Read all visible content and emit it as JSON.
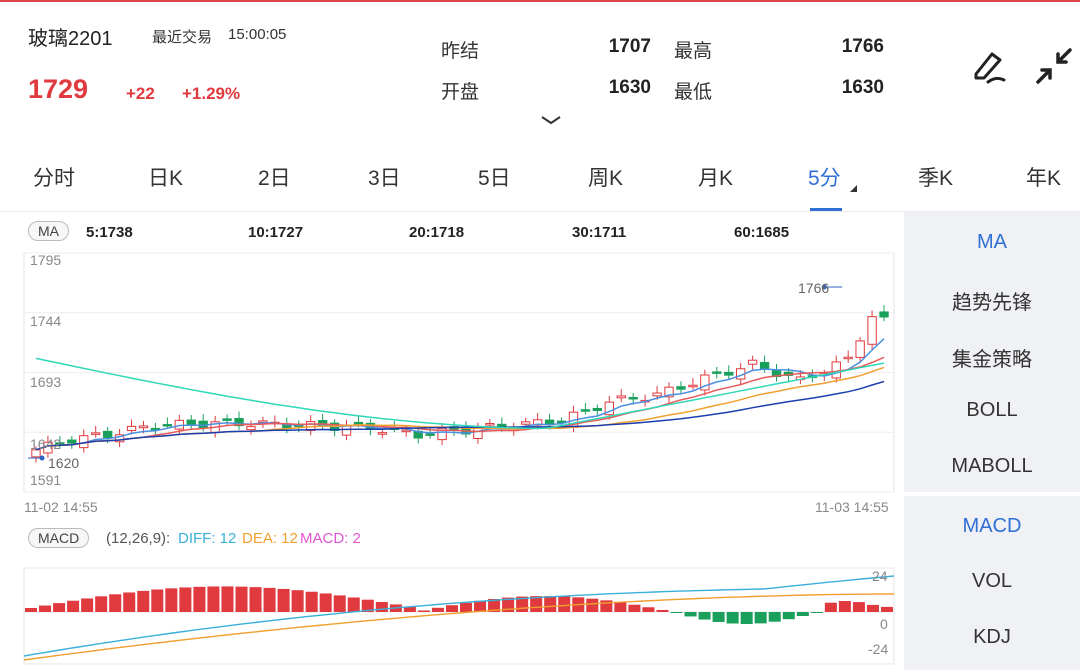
{
  "header": {
    "name": "玻璃2201",
    "last_trade_label": "最近交易",
    "last_trade_time": "15:00:05",
    "price": "1729",
    "change": "+22",
    "change_pct": "+1.29%",
    "stats": [
      {
        "label": "昨结",
        "value": "1707"
      },
      {
        "label": "最高",
        "value": "1766"
      },
      {
        "label": "开盘",
        "value": "1630"
      },
      {
        "label": "最低",
        "value": "1630"
      }
    ],
    "icons": [
      "pen-icon",
      "collapse-icon",
      "chevron-down-icon"
    ]
  },
  "tabs": [
    {
      "label": "分时"
    },
    {
      "label": "日K"
    },
    {
      "label": "2日"
    },
    {
      "label": "3日"
    },
    {
      "label": "5日"
    },
    {
      "label": "周K"
    },
    {
      "label": "月K"
    },
    {
      "label": "5分",
      "active": true
    },
    {
      "label": "季K"
    },
    {
      "label": "年K"
    }
  ],
  "ma_bar": {
    "pill": "MA",
    "values": [
      {
        "text": "5:1738",
        "color": "#4a8fe0"
      },
      {
        "text": "10:1727",
        "color": "#e85a5a"
      },
      {
        "text": "20:1718",
        "color": "#f0a030"
      },
      {
        "text": "30:1711",
        "color": "#1c3fb0"
      },
      {
        "text": "60:1685",
        "color": "#2ed8b8"
      }
    ]
  },
  "price_axis": {
    "labels": [
      "1795",
      "1744",
      "1693",
      "1642",
      "1591"
    ]
  },
  "time_axis": {
    "start": "11-02 14:55",
    "end": "11-03 14:55"
  },
  "markers": {
    "high": "1766",
    "low": "1620"
  },
  "macd_bar": {
    "pill": "MACD",
    "params": "(12,26,9):",
    "diff": "DIFF: 12",
    "dea": "DEA: 12",
    "macd": "MACD: 2",
    "diff_color": "#3ab0d8",
    "dea_color": "#f0a030",
    "macd_color": "#e055d0"
  },
  "macd_axis": {
    "labels": [
      "24",
      "0",
      "-24"
    ]
  },
  "side_panel_top": [
    "MA",
    "趋势先锋",
    "集金策略",
    "BOLL",
    "MABOLL"
  ],
  "side_panel_bottom": [
    "MACD",
    "VOL",
    "KDJ"
  ],
  "colors": {
    "up": "#e0393e",
    "down": "#1aa05a",
    "accent": "#2f6fd6"
  },
  "chart_data": {
    "type": "candlestick",
    "ylim": [
      1591,
      1795
    ],
    "candles_count": 72,
    "ma_latest": {
      "MA5": 1738,
      "MA10": 1727,
      "MA20": 1718,
      "MA30": 1711,
      "MA60": 1685
    },
    "high": 1766,
    "low": 1620,
    "macd": {
      "ylim": [
        -24,
        24
      ],
      "DIFF": 12,
      "DEA": 12,
      "MACD": 2
    }
  }
}
